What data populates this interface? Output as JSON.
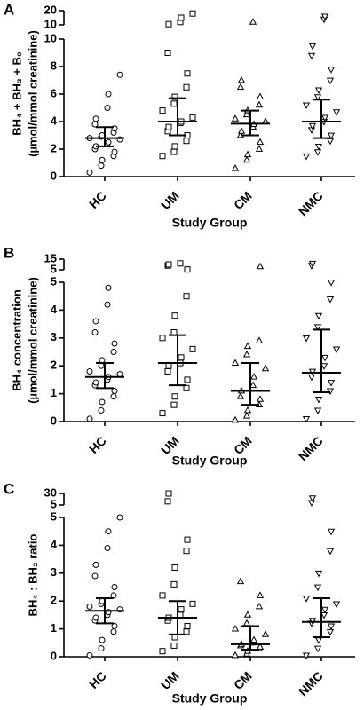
{
  "chart_data": [
    {
      "type": "scatter",
      "panel_label": "A",
      "ylabel": [
        "BH₄ + BH₂ + B₀",
        "(µmol/mmol creatinine)"
      ],
      "xlabel": "Study Group",
      "categories": [
        "HC",
        "UM",
        "CM",
        "NMC"
      ],
      "markers": [
        "circle",
        "square",
        "triangle-up",
        "triangle-down"
      ],
      "color": "#000000",
      "ylim": [
        0,
        10
      ],
      "yticks": [
        0,
        2,
        4,
        6,
        8,
        10
      ],
      "upper_ylim": [
        10,
        20
      ],
      "upper_yticks": [
        10,
        20
      ],
      "groups": [
        [
          0.3,
          0.8,
          1.2,
          1.5,
          1.8,
          2.0,
          2.2,
          2.4,
          2.5,
          2.7,
          2.8,
          2.9,
          3.0,
          3.2,
          3.5,
          3.8,
          4.2,
          5.0,
          6.0,
          7.4
        ],
        [
          1.5,
          1.8,
          2.2,
          2.6,
          3.0,
          3.3,
          3.6,
          3.9,
          4.0,
          4.3,
          4.8,
          5.3,
          5.8,
          6.5,
          7.5,
          9.0,
          10.5,
          12,
          15,
          18
        ],
        [
          0.6,
          1.2,
          1.6,
          2.0,
          2.5,
          3.0,
          3.3,
          3.6,
          3.8,
          4.0,
          4.2,
          4.5,
          4.8,
          5.2,
          5.8,
          6.5,
          7.0,
          12
        ],
        [
          1.5,
          1.8,
          2.2,
          2.6,
          3.0,
          3.4,
          3.7,
          4.0,
          4.3,
          4.7,
          5.2,
          5.8,
          6.3,
          7.0,
          7.8,
          8.8,
          9.5,
          14,
          16
        ]
      ],
      "medians": [
        2.8,
        4.0,
        3.85,
        4.0
      ],
      "q1": [
        2.2,
        3.0,
        3.0,
        2.8
      ],
      "q3": [
        3.6,
        5.7,
        4.8,
        5.6
      ]
    },
    {
      "type": "scatter",
      "panel_label": "B",
      "ylabel": [
        "BH₄ concentration",
        "(µmol/mmol creatinine)"
      ],
      "xlabel": "Study Group",
      "categories": [
        "HC",
        "UM",
        "CM",
        "NMC"
      ],
      "markers": [
        "circle",
        "square",
        "triangle-up",
        "triangle-down"
      ],
      "color": "#000000",
      "ylim": [
        0,
        5
      ],
      "yticks": [
        0,
        1,
        2,
        3,
        4,
        5
      ],
      "upper_ylim": [
        5,
        15
      ],
      "upper_yticks": [
        5,
        15
      ],
      "groups": [
        [
          0.1,
          0.4,
          0.7,
          0.9,
          1.1,
          1.3,
          1.4,
          1.5,
          1.6,
          1.7,
          1.8,
          2.0,
          2.2,
          2.5,
          2.8,
          3.2,
          3.6,
          4.2,
          4.8
        ],
        [
          0.3,
          0.6,
          0.9,
          1.2,
          1.5,
          1.8,
          2.0,
          2.1,
          2.3,
          2.6,
          3.0,
          3.2,
          3.8,
          4.5,
          5.3,
          9,
          10,
          11
        ],
        [
          0.05,
          0.2,
          0.4,
          0.6,
          0.8,
          0.9,
          1.1,
          1.3,
          1.6,
          1.9,
          2.1,
          2.4,
          2.7,
          2.9,
          8
        ],
        [
          0.1,
          0.4,
          0.8,
          1.1,
          1.4,
          1.6,
          1.8,
          2.0,
          2.3,
          2.6,
          3.0,
          3.4,
          3.8,
          4.4,
          5.0,
          9,
          11
        ]
      ],
      "medians": [
        1.6,
        2.1,
        1.1,
        1.75
      ],
      "q1": [
        1.2,
        1.3,
        0.6,
        1.05
      ],
      "q3": [
        2.1,
        3.1,
        2.1,
        3.3
      ]
    },
    {
      "type": "scatter",
      "panel_label": "C",
      "ylabel": [
        "BH₄ : BH₂ ratio"
      ],
      "xlabel": "Study Group",
      "categories": [
        "HC",
        "UM",
        "CM",
        "NMC"
      ],
      "markers": [
        "circle",
        "square",
        "triangle-up",
        "triangle-down"
      ],
      "color": "#000000",
      "ylim": [
        0,
        5
      ],
      "yticks": [
        0,
        1,
        2,
        3,
        4,
        5
      ],
      "upper_ylim": [
        5,
        30
      ],
      "upper_yticks": [
        5,
        30
      ],
      "groups": [
        [
          0.05,
          0.3,
          0.6,
          0.9,
          1.1,
          1.3,
          1.4,
          1.5,
          1.6,
          1.7,
          1.8,
          1.9,
          2.0,
          2.2,
          2.5,
          2.9,
          3.3,
          3.9,
          4.5,
          5.0
        ],
        [
          0.2,
          0.4,
          0.7,
          0.9,
          1.1,
          1.3,
          1.4,
          1.5,
          1.7,
          1.9,
          2.2,
          2.6,
          3.2,
          3.8,
          4.2,
          13,
          30
        ],
        [
          0.05,
          0.1,
          0.2,
          0.3,
          0.35,
          0.4,
          0.45,
          0.5,
          0.6,
          0.8,
          1.0,
          1.2,
          1.5,
          1.8,
          2.2,
          2.7
        ],
        [
          0.05,
          0.3,
          0.6,
          0.9,
          1.1,
          1.2,
          1.3,
          1.5,
          1.7,
          1.9,
          2.1,
          2.5,
          3.0,
          3.8,
          4.5,
          10,
          20
        ]
      ],
      "medians": [
        1.65,
        1.4,
        0.45,
        1.25
      ],
      "q1": [
        1.2,
        0.8,
        0.25,
        0.7
      ],
      "q3": [
        2.1,
        2.0,
        1.1,
        2.1
      ]
    }
  ]
}
